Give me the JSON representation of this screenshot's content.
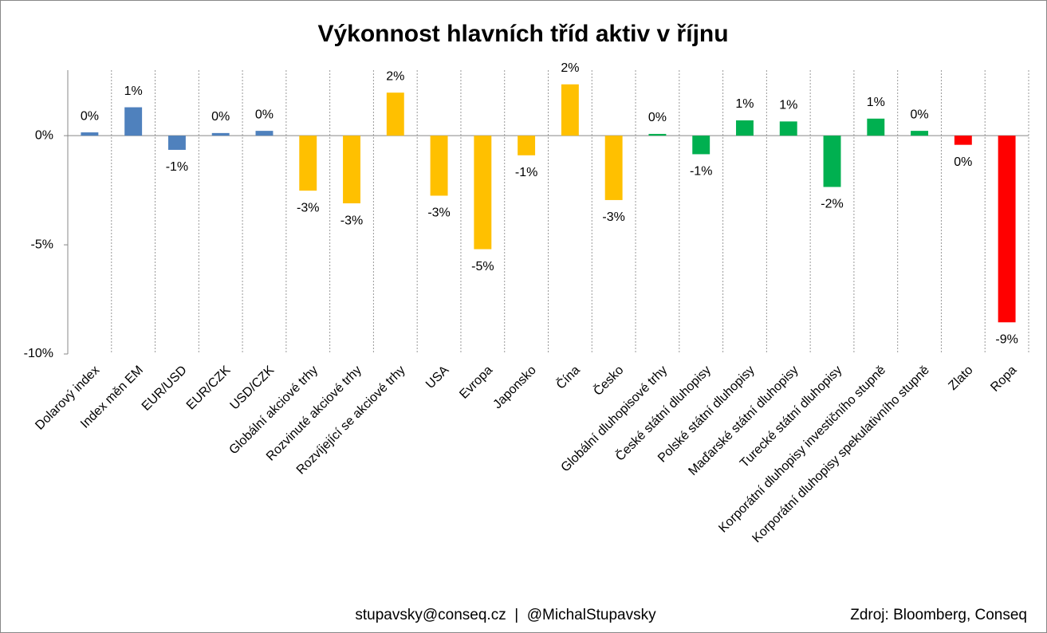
{
  "chart_data": {
    "type": "bar",
    "title": "Výkonnost hlavních tříd aktiv v říjnu",
    "categories": [
      "Dolarový index",
      "Index měn EM",
      "EUR/USD",
      "EUR/CZK",
      "USD/CZK",
      "Globální akciové trhy",
      "Rozvinuté akciové trhy",
      "Rozvíjející se akciové trhy",
      "USA",
      "Evropa",
      "Japonsko",
      "Čína",
      "Česko",
      "Globální dluhopisové trhy",
      "České státní dluhopisy",
      "Polské státní dluhopisy",
      "Maďarské státní dluhopisy",
      "Turecké státní dluhopisy",
      "Korporátní dluhopisy investičního stupně",
      "Korporátní dluhopisy spekulativního stupně",
      "Zlato",
      "Ropa"
    ],
    "values": [
      0.15,
      1.3,
      -0.65,
      0.12,
      0.22,
      -2.52,
      -3.1,
      1.97,
      -2.75,
      -5.2,
      -0.9,
      2.35,
      -2.95,
      0.08,
      -0.85,
      0.7,
      0.65,
      -2.35,
      0.78,
      0.22,
      -0.42,
      -8.55
    ],
    "value_labels": [
      "0%",
      "1%",
      "-1%",
      "0%",
      "0%",
      "-3%",
      "-3%",
      "2%",
      "-3%",
      "-5%",
      "-1%",
      "2%",
      "-3%",
      "0%",
      "-1%",
      "1%",
      "1%",
      "-2%",
      "1%",
      "0%",
      "0%",
      "-9%"
    ],
    "colors": [
      "#4f81bd",
      "#4f81bd",
      "#4f81bd",
      "#4f81bd",
      "#4f81bd",
      "#ffc000",
      "#ffc000",
      "#ffc000",
      "#ffc000",
      "#ffc000",
      "#ffc000",
      "#ffc000",
      "#ffc000",
      "#00b050",
      "#00b050",
      "#00b050",
      "#00b050",
      "#00b050",
      "#00b050",
      "#00b050",
      "#ff0000",
      "#ff0000"
    ],
    "ylim": [
      -10,
      3
    ],
    "yticks": [
      {
        "value": -10,
        "label": "-10%"
      },
      {
        "value": -5,
        "label": "-5%"
      },
      {
        "value": 0,
        "label": "0%"
      }
    ],
    "footer": "stupavsky@conseq.cz  |  @MichalStupavsky",
    "source": "Zdroj: Bloomberg, Conseq"
  }
}
